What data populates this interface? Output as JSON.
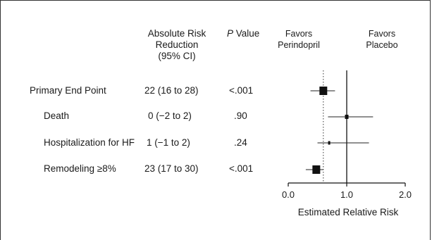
{
  "headers": {
    "arr_lines": [
      "Absolute Risk",
      "Reduction",
      "(95% CI)"
    ],
    "p_italic": "P",
    "p_rest": " Value",
    "favors_left": [
      "Favors",
      "Perindopril"
    ],
    "favors_right": [
      "Favors",
      "Placebo"
    ]
  },
  "rows": [
    {
      "label": "Primary End Point",
      "arr": "22 (16 to 28)",
      "p": "<.001"
    },
    {
      "label": "Death",
      "arr": "0 (−2 to 2)",
      "p": ".90"
    },
    {
      "label": "Hospitalization for HF",
      "arr": "1 (−1 to 2)",
      "p": ".24"
    },
    {
      "label": "Remodeling ≥8%",
      "arr": "23 (17 to 30)",
      "p": "<.001"
    }
  ],
  "chart_data": {
    "type": "forest",
    "xlabel": "Estimated Relative Risk",
    "xlim": [
      0.0,
      2.0
    ],
    "xticks": [
      0.0,
      1.0,
      2.0
    ],
    "xtick_labels": [
      "0.0",
      "1.0",
      "2.0"
    ],
    "reference_line": 1.0,
    "pooled_dotted_line": 0.6,
    "points": [
      {
        "name": "Primary End Point",
        "estimate": 0.6,
        "lower": 0.38,
        "upper": 0.8,
        "weight": "large"
      },
      {
        "name": "Death",
        "estimate": 1.0,
        "lower": 0.68,
        "upper": 1.45,
        "weight": "small"
      },
      {
        "name": "Hospitalization for HF",
        "estimate": 0.7,
        "lower": 0.5,
        "upper": 1.38,
        "weight": "tiny"
      },
      {
        "name": "Remodeling ≥8%",
        "estimate": 0.48,
        "lower": 0.3,
        "upper": 0.6,
        "weight": "large"
      }
    ]
  }
}
